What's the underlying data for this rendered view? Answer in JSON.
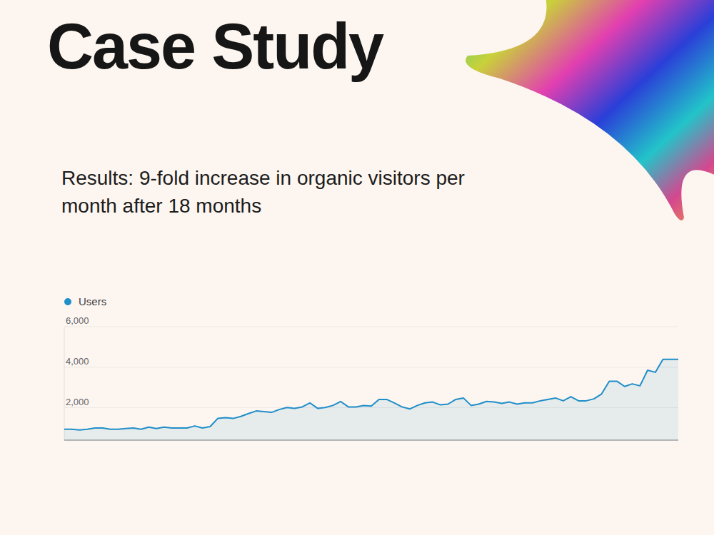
{
  "chart_data": {
    "type": "area",
    "title": "Case Study",
    "subtitle": "Results: 9-fold increase in organic visitors per month after 18 months",
    "categories": [
      null,
      null,
      null,
      null,
      null,
      null,
      null,
      null,
      null,
      null,
      null,
      null,
      null,
      null,
      null,
      null,
      null,
      null,
      null,
      null,
      null,
      null,
      null,
      null,
      null,
      null,
      null,
      null,
      null,
      null,
      null,
      null,
      null,
      null,
      null,
      null,
      null,
      null,
      null,
      null,
      null,
      null,
      null,
      null,
      null,
      null,
      null,
      null,
      null,
      null,
      null,
      null,
      null,
      null,
      null,
      null,
      null,
      null,
      null,
      null,
      null,
      null,
      null,
      null,
      null,
      null,
      null,
      null,
      null,
      null,
      null,
      null,
      null,
      null,
      null,
      null,
      null,
      null,
      null,
      null,
      null
    ],
    "series": [
      {
        "name": "Users",
        "color": "#1f8ec9",
        "values": [
          940,
          940,
          900,
          940,
          1000,
          1000,
          940,
          940,
          970,
          1000,
          940,
          1040,
          970,
          1040,
          1000,
          1000,
          1000,
          1100,
          1000,
          1070,
          1470,
          1510,
          1470,
          1570,
          1710,
          1840,
          1810,
          1770,
          1910,
          2010,
          1970,
          2040,
          2240,
          1970,
          2010,
          2110,
          2310,
          2040,
          2040,
          2110,
          2080,
          2410,
          2410,
          2240,
          2040,
          1940,
          2110,
          2240,
          2280,
          2140,
          2180,
          2410,
          2480,
          2110,
          2180,
          2310,
          2280,
          2210,
          2280,
          2180,
          2240,
          2240,
          2340,
          2410,
          2480,
          2340,
          2540,
          2340,
          2340,
          2440,
          2680,
          3310,
          3310,
          3050,
          3180,
          3080,
          3850,
          3750,
          4390,
          4390,
          4390
        ]
      }
    ],
    "ylim": [
      400,
      6000
    ],
    "yticks": [
      {
        "value": 2000,
        "label": "2,000"
      },
      {
        "value": 4000,
        "label": "4,000"
      },
      {
        "value": 6000,
        "label": "6,000"
      }
    ],
    "grid": true,
    "legend": "top-left",
    "tick_labels": "y"
  }
}
